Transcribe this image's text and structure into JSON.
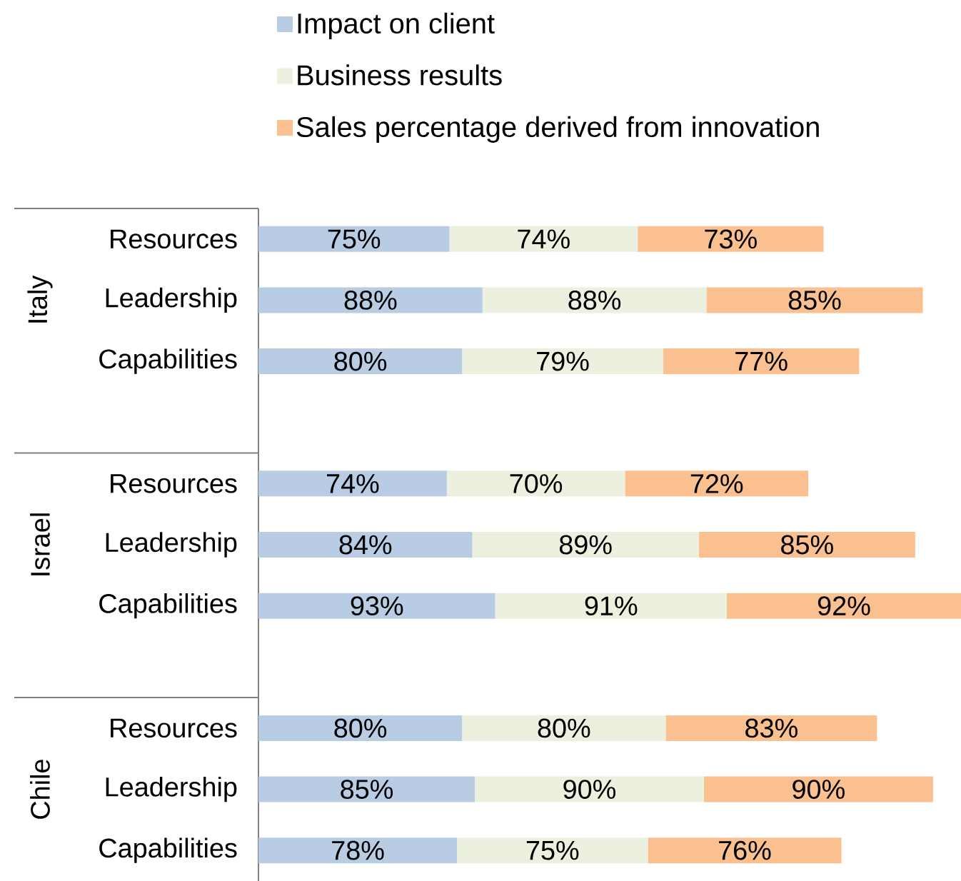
{
  "chart_data": {
    "type": "bar",
    "orientation": "horizontal",
    "stacked": true,
    "legend": "top",
    "data_labels": true,
    "categories": [
      "Resources",
      "Leadership",
      "Capabilities",
      "Resources",
      "Leadership",
      "Capabilities",
      "Resources",
      "Leadership",
      "Capabilities"
    ],
    "annotations": [
      "Italy",
      "Israel",
      "Chile"
    ],
    "series": [
      {
        "name": "Impact on client",
        "color": "#b8cce4",
        "values": [
          75,
          88,
          80,
          74,
          84,
          93,
          80,
          85,
          78
        ],
        "value_labels": [
          "75%",
          "88%",
          "80%",
          "74%",
          "84%",
          "93%",
          "80%",
          "85%",
          "78%"
        ]
      },
      {
        "name": "Business results",
        "color": "#ebf1de",
        "values": [
          74,
          88,
          79,
          70,
          89,
          91,
          80,
          90,
          75
        ],
        "value_labels": [
          "74%",
          "88%",
          "79%",
          "70%",
          "89%",
          "91%",
          "80%",
          "90%",
          "75%"
        ]
      },
      {
        "name": "Sales percentage derived from innovation",
        "color": "#fac090",
        "values": [
          73,
          85,
          77,
          72,
          85,
          92,
          83,
          90,
          76
        ],
        "value_labels": [
          "73%",
          "85%",
          "77%",
          "72%",
          "85%",
          "92%",
          "83%",
          "90%",
          "76%"
        ]
      }
    ]
  }
}
